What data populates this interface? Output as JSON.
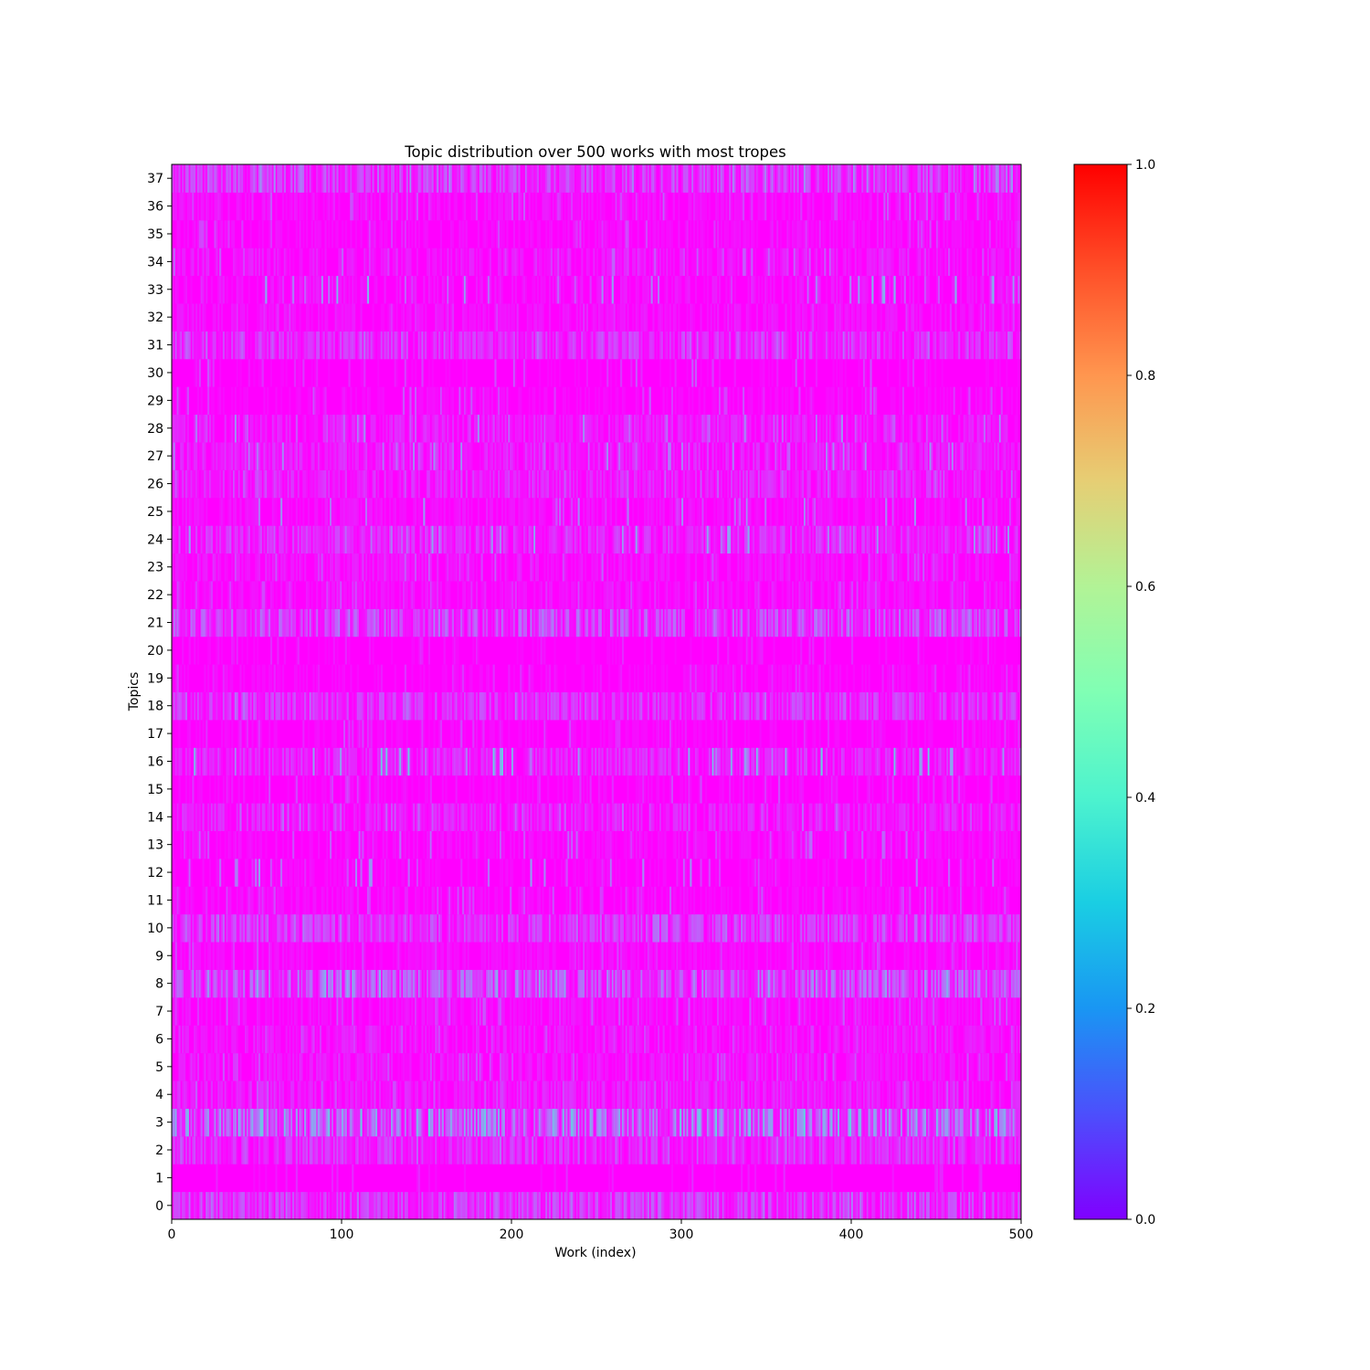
{
  "chart_data": {
    "type": "heatmap",
    "title": "Topic distribution over 500 works with most tropes",
    "xlabel": "Work (index)",
    "ylabel": "Topics",
    "x_range": [
      0,
      500
    ],
    "x_ticks": [
      0,
      100,
      200,
      300,
      400,
      500
    ],
    "y_categories": [
      "0",
      "1",
      "2",
      "3",
      "4",
      "5",
      "6",
      "7",
      "8",
      "9",
      "10",
      "11",
      "12",
      "13",
      "14",
      "15",
      "16",
      "17",
      "18",
      "19",
      "20",
      "21",
      "22",
      "23",
      "24",
      "25",
      "26",
      "27",
      "28",
      "29",
      "30",
      "31",
      "32",
      "33",
      "34",
      "35",
      "36",
      "37"
    ],
    "colormap": "rainbow",
    "colorbar": {
      "range": [
        0.0,
        1.0
      ],
      "ticks": [
        0.0,
        0.2,
        0.4,
        0.6,
        0.8,
        1.0
      ],
      "tick_labels": [
        "0.0",
        "0.2",
        "0.4",
        "0.6",
        "0.8",
        "1.0"
      ]
    },
    "n_works": 500,
    "topic_mean_weights": [
      0.085,
      0.005,
      0.07,
      0.16,
      0.045,
      0.035,
      0.035,
      0.025,
      0.12,
      0.02,
      0.085,
      0.02,
      0.015,
      0.02,
      0.05,
      0.015,
      0.06,
      0.015,
      0.075,
      0.015,
      0.01,
      0.1,
      0.025,
      0.03,
      0.065,
      0.025,
      0.055,
      0.05,
      0.045,
      0.015,
      0.01,
      0.07,
      0.025,
      0.03,
      0.035,
      0.02,
      0.025,
      0.09
    ],
    "topic_max_weights": [
      0.17,
      0.06,
      0.14,
      0.32,
      0.12,
      0.12,
      0.1,
      0.12,
      0.25,
      0.1,
      0.16,
      0.12,
      0.22,
      0.15,
      0.14,
      0.1,
      0.3,
      0.1,
      0.16,
      0.08,
      0.06,
      0.18,
      0.1,
      0.13,
      0.24,
      0.2,
      0.13,
      0.2,
      0.2,
      0.12,
      0.12,
      0.15,
      0.08,
      0.25,
      0.13,
      0.1,
      0.13,
      0.2
    ],
    "grid": false,
    "legend": "none"
  }
}
